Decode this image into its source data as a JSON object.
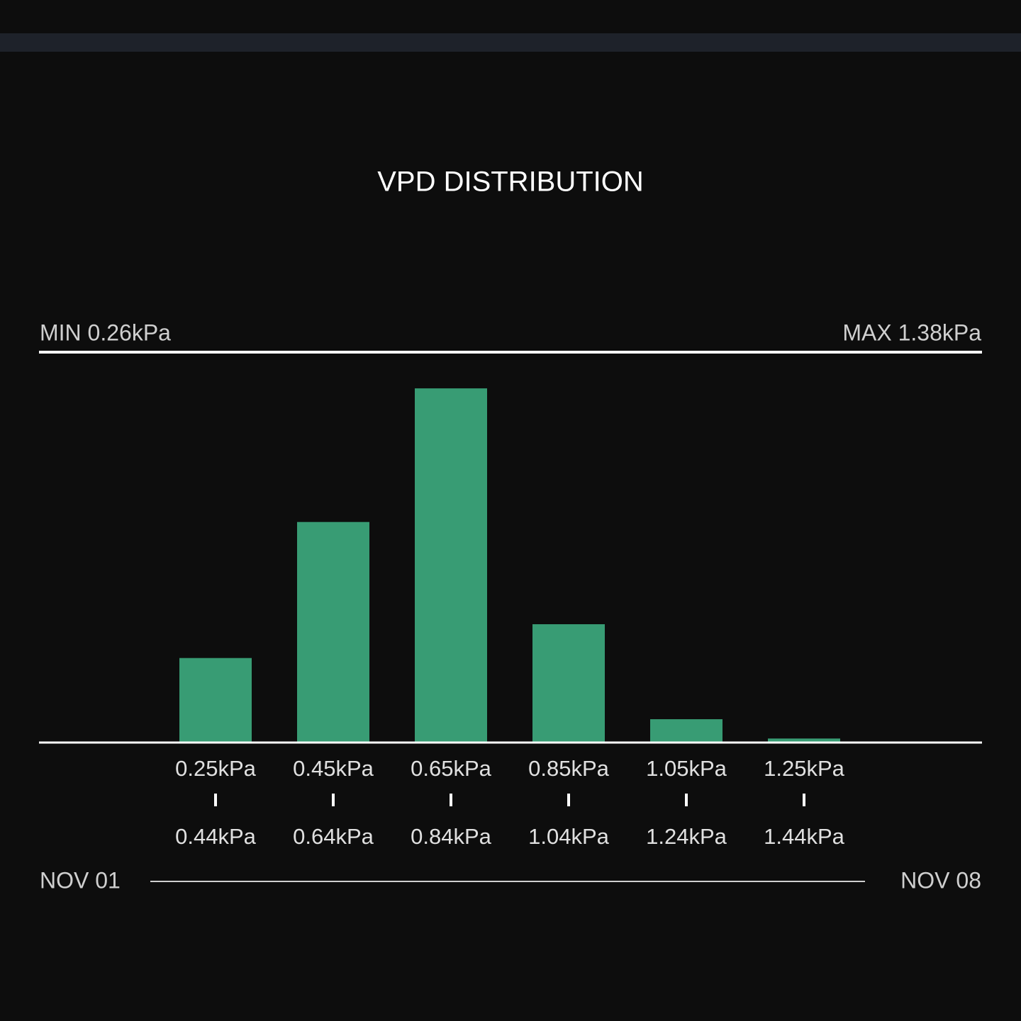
{
  "chart_data": {
    "type": "bar",
    "title": "VPD DISTRIBUTION",
    "min_label": "MIN 0.26kPa",
    "max_label": "MAX 1.38kPa",
    "bin_starts": [
      "0.25kPa",
      "0.45kPa",
      "0.65kPa",
      "0.85kPa",
      "1.05kPa",
      "1.25kPa"
    ],
    "bin_ends": [
      "0.44kPa",
      "0.64kPa",
      "0.84kPa",
      "1.04kPa",
      "1.24kPa",
      "1.44kPa"
    ],
    "values": [
      10.5,
      27.4,
      44.0,
      14.7,
      2.9,
      0.5
    ],
    "color": "#389c74",
    "ylim": [
      0,
      48.5
    ],
    "start_date": "NOV 01",
    "end_date": "NOV 08"
  }
}
